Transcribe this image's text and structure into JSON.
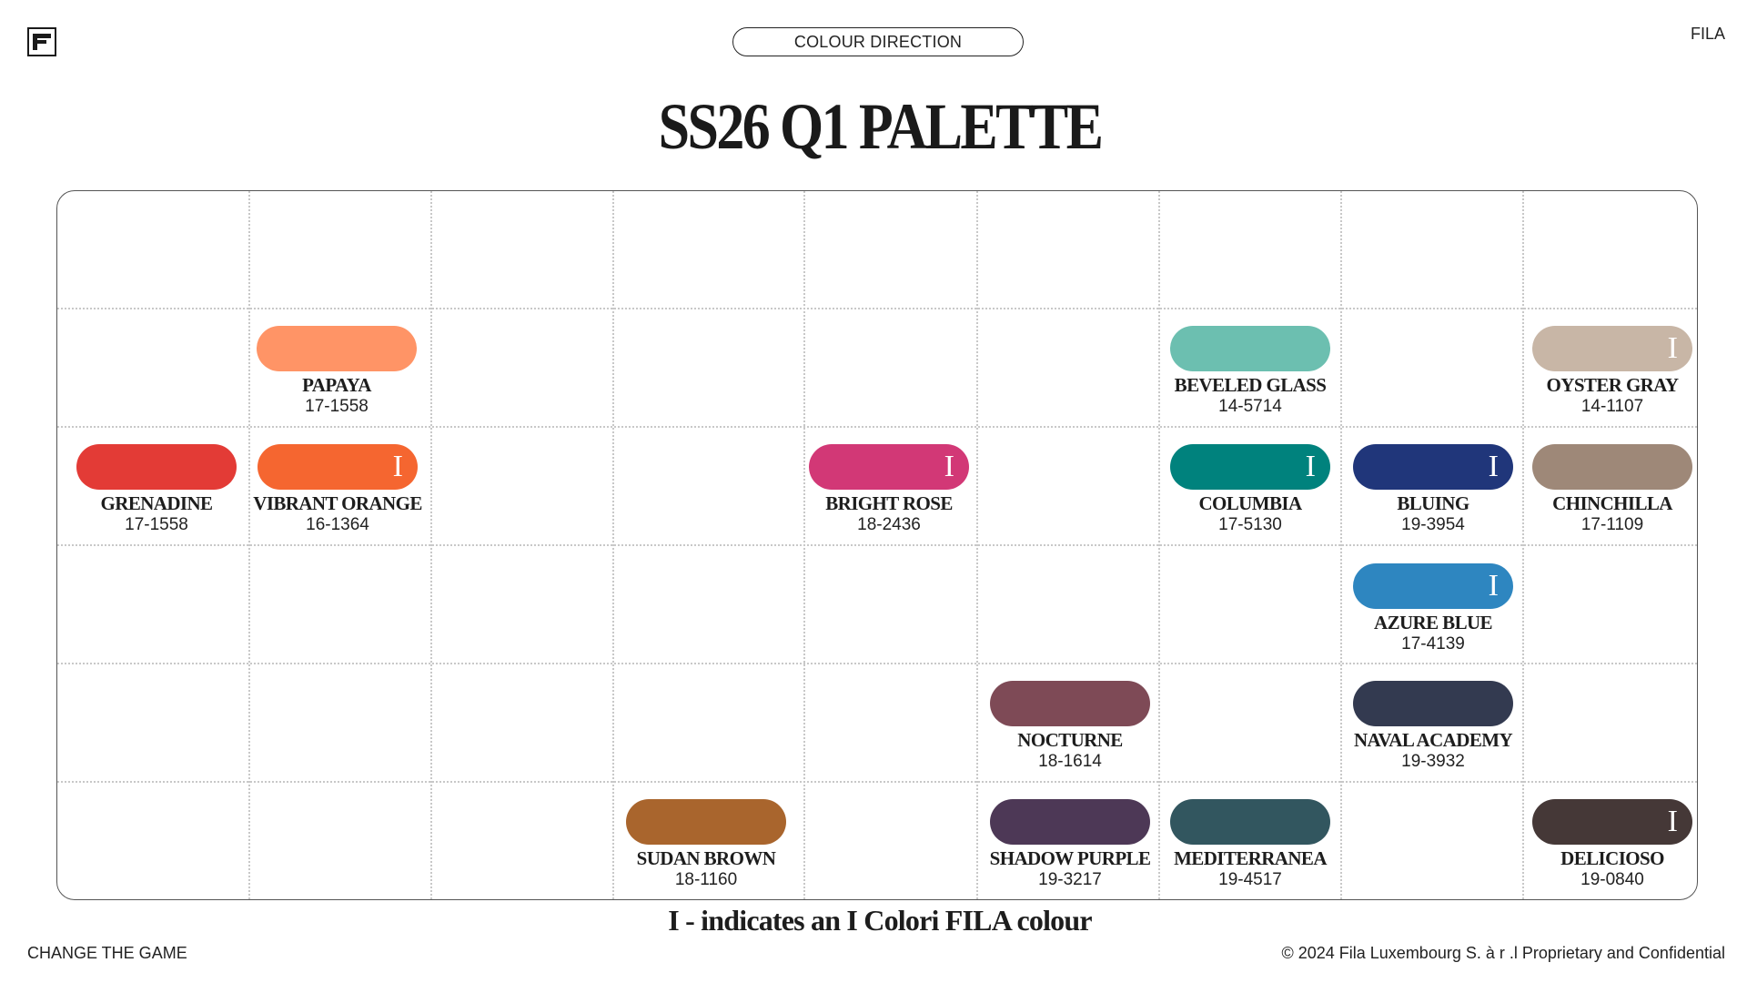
{
  "header": {
    "pill_label": "COLOUR DIRECTION",
    "brand": "FILA",
    "logo_icon": "fila-f-logo-icon"
  },
  "title": "SS26 Q1 PALETTE",
  "palette": {
    "papaya": {
      "name": "PAPAYA",
      "code": "17-1558",
      "color": "#FF9466",
      "icolori": false
    },
    "grenadine": {
      "name": "GRENADINE",
      "code": "17-1558",
      "color": "#E33B36",
      "icolori": false
    },
    "vibrant_orange": {
      "name": "VIBRANT ORANGE",
      "code": "16-1364",
      "color": "#F56630",
      "icolori": true,
      "mark": "I"
    },
    "bright_rose": {
      "name": "BRIGHT ROSE",
      "code": "18-2436",
      "color": "#D23876",
      "icolori": true,
      "mark": "I"
    },
    "beveled_glass": {
      "name": "BEVELED GLASS",
      "code": "14-5714",
      "color": "#6CBFB0",
      "icolori": false
    },
    "columbia": {
      "name": "COLUMBIA",
      "code": "17-5130",
      "color": "#00827D",
      "icolori": true,
      "mark": "I"
    },
    "oyster_gray": {
      "name": "OYSTER GRAY",
      "code": "14-1107",
      "color": "#C8B6A6",
      "icolori": true,
      "mark": "I"
    },
    "chinchilla": {
      "name": "CHINCHILLA",
      "code": "17-1109",
      "color": "#9E8878",
      "icolori": false
    },
    "bluing": {
      "name": "BLUING",
      "code": "19-3954",
      "color": "#20367A",
      "icolori": true,
      "mark": "I"
    },
    "azure_blue": {
      "name": "AZURE BLUE",
      "code": "17-4139",
      "color": "#2E86C0",
      "icolori": true,
      "mark": "I"
    },
    "nocturne": {
      "name": "NOCTURNE",
      "code": "18-1614",
      "color": "#7E4A56",
      "icolori": false
    },
    "naval_academy": {
      "name": "NAVAL ACADEMY",
      "code": "19-3932",
      "color": "#333A50",
      "icolori": false
    },
    "sudan_brown": {
      "name": "SUDAN BROWN",
      "code": "18-1160",
      "color": "#A9652D",
      "icolori": false
    },
    "shadow_purple": {
      "name": "SHADOW PURPLE",
      "code": "19-3217",
      "color": "#4D3856",
      "icolori": false
    },
    "mediterranea": {
      "name": "MEDITERRANEA",
      "code": "19-4517",
      "color": "#32565F",
      "icolori": false
    },
    "delicioso": {
      "name": "DELICIOSO",
      "code": "19-0840",
      "color": "#453837",
      "icolori": true,
      "mark": "I"
    }
  },
  "note": "I - indicates an I Colori FILA colour",
  "footer": {
    "left": "CHANGE THE GAME",
    "right": "© 2024 Fila Luxembourg S. à r .l Proprietary and Confidential"
  }
}
